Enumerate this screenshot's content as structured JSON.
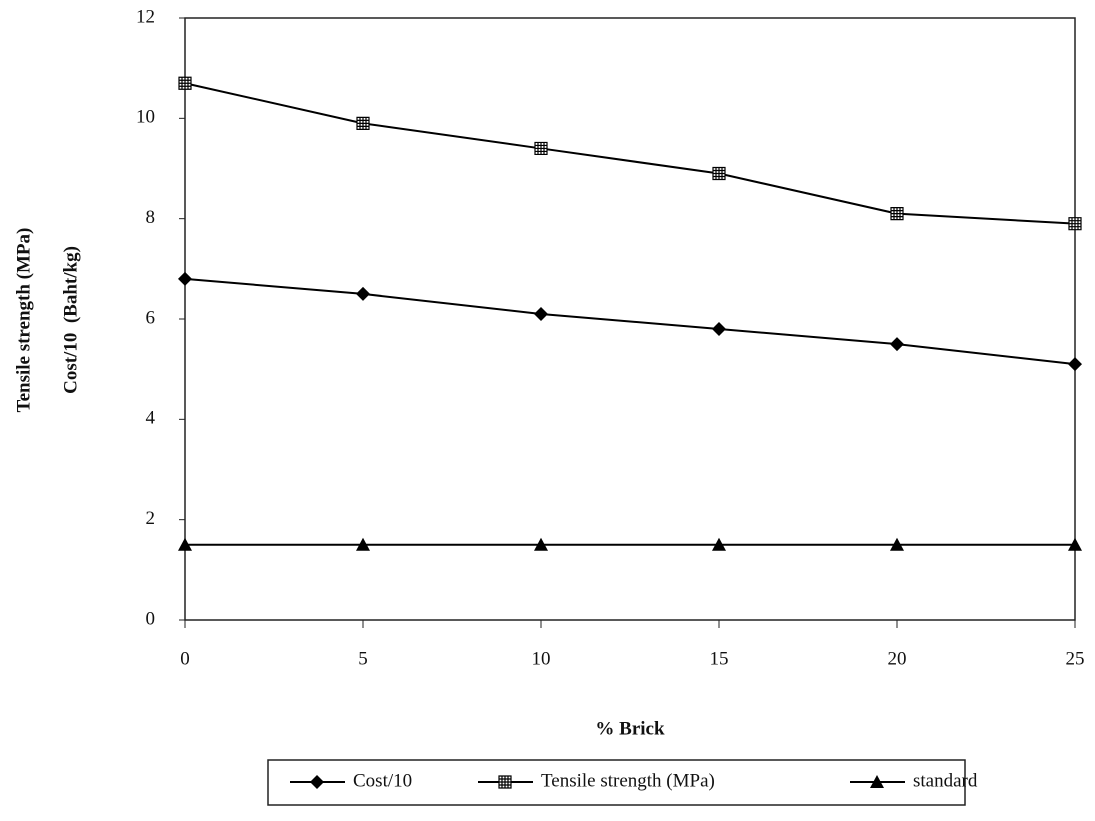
{
  "chart_data": {
    "type": "line",
    "xlabel": "% Brick",
    "ylabel": [
      "Tensile strength (MPa)",
      "Cost/10  (Baht/kg)"
    ],
    "x": [
      0,
      5,
      10,
      15,
      20,
      25
    ],
    "xlim": [
      0,
      25
    ],
    "xticks": [
      0,
      5,
      10,
      15,
      20,
      25
    ],
    "ylim": [
      0,
      12
    ],
    "yticks": [
      0,
      2,
      4,
      6,
      8,
      10,
      12
    ],
    "grid": false,
    "legend": "bottom",
    "series": [
      {
        "name": "Cost/10",
        "color": "#000000",
        "marker": "diamond",
        "values": [
          6.8,
          6.5,
          6.1,
          5.8,
          5.5,
          5.1
        ]
      },
      {
        "name": "Tensile strength (MPa)",
        "color": "#000000",
        "marker": "square",
        "values": [
          10.7,
          9.9,
          9.4,
          8.9,
          8.1,
          7.9
        ]
      },
      {
        "name": "standard",
        "color": "#000000",
        "marker": "triangle",
        "values": [
          1.5,
          1.5,
          1.5,
          1.5,
          1.5,
          1.5
        ]
      }
    ]
  }
}
